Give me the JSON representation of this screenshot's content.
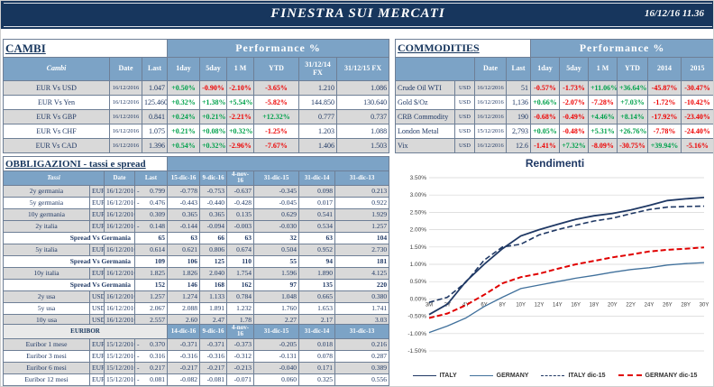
{
  "header": {
    "title": "FINESTRA SUI MERCATI",
    "datetime": "16/12/16 11.36"
  },
  "colors": {
    "header_navy": "#17365D",
    "table_header_blue": "#7CA3C6",
    "text_navy": "#1F3864",
    "positive_green": "#00A14B",
    "negative_red": "#EE0000",
    "row_shade_gray": "#D9D9D9",
    "chart_italy": "#1F3864",
    "chart_germany": "#41719C",
    "chart_germany_dic15": "#E00000"
  },
  "cambi": {
    "section_title": "CAMBI",
    "performance_title": "Performance %",
    "columns": [
      "Cambi",
      "Date",
      "Last",
      "1day",
      "5day",
      "1 M",
      "YTD",
      "31/12/14\nFX",
      "31/12/15  FX"
    ],
    "rows": [
      {
        "name": "EUR Vs USD",
        "date": "16/12/2016",
        "last": "1.047",
        "perf": [
          "+0.50%",
          "-0.90%",
          "-2.10%",
          "-3.65%"
        ],
        "fx14": "1.210",
        "fx15": "1.086"
      },
      {
        "name": "EUR Vs Yen",
        "date": "16/12/2016",
        "last": "125.460",
        "perf": [
          "+0.32%",
          "+1.38%",
          "+5.54%",
          "-5.82%"
        ],
        "fx14": "144.850",
        "fx15": "130.640"
      },
      {
        "name": "EUR Vs GBP",
        "date": "16/12/2016",
        "last": "0.841",
        "perf": [
          "+0.24%",
          "+0.21%",
          "-2.21%",
          "+12.32%"
        ],
        "fx14": "0.777",
        "fx15": "0.737"
      },
      {
        "name": "EUR Vs CHF",
        "date": "16/12/2016",
        "last": "1.075",
        "perf": [
          "+0.21%",
          "+0.08%",
          "+0.32%",
          "-1.25%"
        ],
        "fx14": "1.203",
        "fx15": "1.088"
      },
      {
        "name": "EUR Vs CAD",
        "date": "16/12/2016",
        "last": "1.396",
        "perf": [
          "+0.54%",
          "+0.32%",
          "-2.96%",
          "-7.67%"
        ],
        "fx14": "1.406",
        "fx15": "1.503"
      }
    ]
  },
  "commodities": {
    "section_title": "COMMODITIES",
    "performance_title": "Performance %",
    "columns": [
      "",
      "Date",
      "Last",
      "1day",
      "5day",
      "1 M",
      "YTD",
      "2014",
      "2015"
    ],
    "rows": [
      {
        "name": "Crude Oil WTI",
        "ccy": "USD",
        "date": "16/12/2016",
        "last": "51",
        "perf": [
          "-0.57%",
          "-1.73%",
          "+11.06%",
          "+36.64%",
          "-45.87%",
          "-30.47%"
        ]
      },
      {
        "name": "Gold $/Oz",
        "ccy": "USD",
        "date": "16/12/2016",
        "last": "1,136",
        "perf": [
          "+0.66%",
          "-2.07%",
          "-7.28%",
          "+7.03%",
          "-1.72%",
          "-10.42%"
        ]
      },
      {
        "name": "CRB Commodity",
        "ccy": "USD",
        "date": "16/12/2016",
        "last": "190",
        "perf": [
          "-0.68%",
          "-0.49%",
          "+4.46%",
          "+8.14%",
          "-17.92%",
          "-23.40%"
        ]
      },
      {
        "name": "London Metal",
        "ccy": "USD",
        "date": "15/12/2016",
        "last": "2,793",
        "perf": [
          "+0.05%",
          "-0.48%",
          "+5.31%",
          "+26.76%",
          "-7.78%",
          "-24.40%"
        ]
      },
      {
        "name": "Vix",
        "ccy": "USD",
        "date": "16/12/2016",
        "last": "12.6",
        "perf": [
          "-1.41%",
          "+7.32%",
          "-8.09%",
          "-30.75%",
          "+39.94%",
          "-5.16%"
        ]
      }
    ]
  },
  "obbligazioni": {
    "section_title": "OBBLIGAZIONI - tassi e spread",
    "columns": [
      "Tassi",
      "Date",
      "Last",
      "15-dic-16",
      "9-dic-16",
      "4-nov-16",
      "31-dic-15",
      "31-dic-14",
      "31-dic-13"
    ],
    "rows": [
      {
        "name": "2y germania",
        "ccy": "EUR",
        "date": "16/12/2016",
        "sign": "-",
        "last": "0.799",
        "values": [
          "-0.778",
          "-0.753",
          "-0.637",
          "-0.345",
          "0.098",
          "0.213"
        ],
        "shade": true
      },
      {
        "name": "5y germania",
        "ccy": "EUR",
        "date": "16/12/2016",
        "sign": "-",
        "last": "0.476",
        "values": [
          "-0.443",
          "-0.440",
          "-0.428",
          "-0.045",
          "0.017",
          "0.922"
        ],
        "shade": false
      },
      {
        "name": "10y germania",
        "ccy": "EUR",
        "date": "16/12/2016",
        "sign": "",
        "last": "0.309",
        "values": [
          "0.365",
          "0.365",
          "0.135",
          "0.629",
          "0.541",
          "1.929"
        ],
        "shade": true
      },
      {
        "name": "2y italia",
        "ccy": "EUR",
        "date": "16/12/2016",
        "sign": "-",
        "last": "0.148",
        "values": [
          "-0.144",
          "-0.094",
          "-0.003",
          "-0.030",
          "0.534",
          "1.257"
        ],
        "shade": true
      },
      {
        "label": "Spread Vs Germania",
        "last": "65",
        "values": [
          "63",
          "66",
          "63",
          "32",
          "63",
          "104"
        ]
      },
      {
        "name": "5y italia",
        "ccy": "EUR",
        "date": "16/12/2016",
        "sign": "",
        "last": "0.614",
        "values": [
          "0.621",
          "0.806",
          "0.674",
          "0.504",
          "0.952",
          "2.730"
        ],
        "shade": true
      },
      {
        "label": "Spread Vs Germania",
        "last": "109",
        "values": [
          "106",
          "125",
          "110",
          "55",
          "94",
          "181"
        ]
      },
      {
        "name": "10y italia",
        "ccy": "EUR",
        "date": "16/12/2016",
        "sign": "",
        "last": "1.825",
        "values": [
          "1.826",
          "2.040",
          "1.754",
          "1.596",
          "1.890",
          "4.125"
        ],
        "shade": true
      },
      {
        "label": "Spread Vs Germania",
        "last": "152",
        "values": [
          "146",
          "168",
          "162",
          "97",
          "135",
          "220"
        ]
      },
      {
        "name": "2y usa",
        "ccy": "USD",
        "date": "16/12/2016",
        "sign": "",
        "last": "1.257",
        "values": [
          "1.274",
          "1.133",
          "0.784",
          "1.048",
          "0.665",
          "0.380"
        ],
        "shade": true
      },
      {
        "name": "5y usa",
        "ccy": "USD",
        "date": "16/12/2016",
        "sign": "",
        "last": "2.067",
        "values": [
          "2.088",
          "1.891",
          "1.232",
          "1.760",
          "1.653",
          "1.741"
        ],
        "shade": false
      },
      {
        "name": "10y usa",
        "ccy": "USD",
        "date": "16/12/2016",
        "sign": "",
        "last": "2.557",
        "values": [
          "2.60",
          "2.47",
          "1.78",
          "2.27",
          "2.17",
          "3.03"
        ],
        "shade": true
      }
    ]
  },
  "euribor": {
    "columns": [
      "EURIBOR",
      "14-dic-16",
      "9-dic-16",
      "4-nov-16",
      "31-dic-15",
      "31-dic-14",
      "31-dic-13"
    ],
    "rows": [
      {
        "name": "Euribor 1 mese",
        "ccy": "EUR",
        "date": "15/12/2016",
        "sign": "-",
        "last": "0.370",
        "values": [
          "-0.371",
          "-0.371",
          "-0.373",
          "-0.205",
          "0.018",
          "0.216"
        ],
        "shade": true
      },
      {
        "name": "Euribor 3 mesi",
        "ccy": "EUR",
        "date": "15/12/2016",
        "sign": "-",
        "last": "0.316",
        "values": [
          "-0.316",
          "-0.316",
          "-0.312",
          "-0.131",
          "0.078",
          "0.287"
        ],
        "shade": false
      },
      {
        "name": "Euribor 6 mesi",
        "ccy": "EUR",
        "date": "15/12/2016",
        "sign": "-",
        "last": "0.217",
        "values": [
          "-0.217",
          "-0.217",
          "-0.213",
          "-0.040",
          "0.171",
          "0.389"
        ],
        "shade": true
      },
      {
        "name": "Euribor 12 mesi",
        "ccy": "EUR",
        "date": "15/12/2016",
        "sign": "-",
        "last": "0.081",
        "values": [
          "-0.082",
          "-0.081",
          "-0.071",
          "0.060",
          "0.325",
          "0.556"
        ],
        "shade": false
      }
    ]
  },
  "chart_data": {
    "type": "line",
    "title": "Rendimenti",
    "x_categories": [
      "3M",
      "2Y",
      "4Y",
      "6Y",
      "8Y",
      "10Y",
      "12Y",
      "14Y",
      "16Y",
      "18Y",
      "20Y",
      "22Y",
      "24Y",
      "26Y",
      "28Y",
      "30Y"
    ],
    "y_axis": {
      "min": -1.5,
      "max": 3.5,
      "step": 0.5,
      "format": "percent"
    },
    "grid": true,
    "legend_position": "bottom",
    "series": [
      {
        "name": "ITALY",
        "style": "solid",
        "color": "#1F3864",
        "values": [
          -0.45,
          -0.15,
          0.5,
          1.0,
          1.45,
          1.82,
          2.0,
          2.15,
          2.3,
          2.4,
          2.47,
          2.57,
          2.7,
          2.84,
          2.89,
          2.93
        ]
      },
      {
        "name": "GERMANY",
        "style": "solid",
        "color": "#41719C",
        "values": [
          -0.97,
          -0.78,
          -0.55,
          -0.22,
          0.05,
          0.3,
          0.4,
          0.5,
          0.6,
          0.68,
          0.77,
          0.85,
          0.9,
          0.98,
          1.02,
          1.05
        ]
      },
      {
        "name": "ITALY dic-15",
        "style": "dashed",
        "color": "#1F3864",
        "values": [
          -0.1,
          0.05,
          0.48,
          1.12,
          1.5,
          1.58,
          1.85,
          2.0,
          2.13,
          2.25,
          2.33,
          2.46,
          2.58,
          2.65,
          2.67,
          2.68
        ]
      },
      {
        "name": "GERMANY dic-15",
        "style": "dashed",
        "color": "#E00000",
        "values": [
          -0.55,
          -0.42,
          -0.18,
          0.12,
          0.45,
          0.63,
          0.73,
          0.87,
          1.0,
          1.1,
          1.2,
          1.28,
          1.37,
          1.42,
          1.45,
          1.49
        ]
      }
    ]
  }
}
